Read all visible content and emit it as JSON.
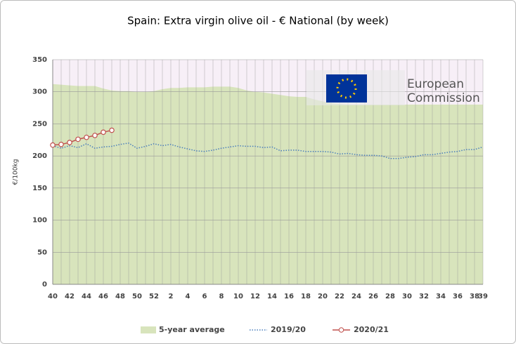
{
  "chart_data": {
    "type": "line",
    "title": "Spain: Extra virgin olive oil - € National (by week)",
    "y_label": "€/100kg",
    "annotations": [
      "European",
      "Commission"
    ],
    "categories": [
      "40",
      null,
      "42",
      null,
      "44",
      null,
      "46",
      null,
      "48",
      null,
      "50",
      null,
      "52",
      null,
      "2",
      null,
      "4",
      null,
      "6",
      null,
      "8",
      null,
      "10",
      null,
      "12",
      null,
      "14",
      null,
      "16",
      null,
      "18",
      null,
      "20",
      null,
      "22",
      null,
      "24",
      null,
      "26",
      null,
      "28",
      null,
      "30",
      null,
      "32",
      null,
      "34",
      null,
      "36",
      null,
      "38",
      "39"
    ],
    "ylim": [
      0,
      350
    ],
    "yticks": [
      0,
      50,
      100,
      150,
      200,
      250,
      300,
      350
    ],
    "grid": true,
    "series": [
      {
        "name": "5-year average",
        "style": "area",
        "color": "#d8e4bc",
        "values": [
          312,
          311,
          310,
          309,
          309,
          309,
          305,
          302,
          301,
          301,
          300,
          300,
          301,
          304,
          306,
          306,
          307,
          307,
          307,
          308,
          308,
          308,
          306,
          302,
          300,
          299,
          297,
          295,
          293,
          292,
          292,
          288,
          285,
          282,
          281,
          280,
          280,
          280,
          280,
          280,
          280,
          280,
          280,
          280,
          280,
          280,
          280,
          280,
          280,
          280,
          280,
          280
        ]
      },
      {
        "name": "2019/20",
        "style": "dotted",
        "color": "#4a7ebb",
        "values": [
          216,
          212,
          216,
          213,
          219,
          212,
          214,
          215,
          218,
          220,
          212,
          215,
          219,
          216,
          218,
          214,
          211,
          208,
          207,
          209,
          212,
          214,
          216,
          215,
          215,
          213,
          214,
          208,
          209,
          209,
          207,
          207,
          207,
          206,
          203,
          204,
          202,
          201,
          201,
          200,
          196,
          196,
          198,
          199,
          202,
          202,
          204,
          206,
          207,
          210,
          210,
          214
        ]
      },
      {
        "name": "2020/21",
        "style": "marker-line",
        "color": "#c0504d",
        "values": [
          217,
          218,
          221,
          226,
          229,
          232,
          237,
          240,
          null,
          null,
          null,
          null,
          null,
          null,
          null,
          null,
          null,
          null,
          null,
          null,
          null,
          null,
          null,
          null,
          null,
          null,
          null,
          null,
          null,
          null,
          null,
          null,
          null,
          null,
          null,
          null,
          null,
          null,
          null,
          null,
          null,
          null,
          null,
          null,
          null,
          null,
          null,
          null,
          null,
          null,
          null,
          null
        ]
      }
    ]
  }
}
